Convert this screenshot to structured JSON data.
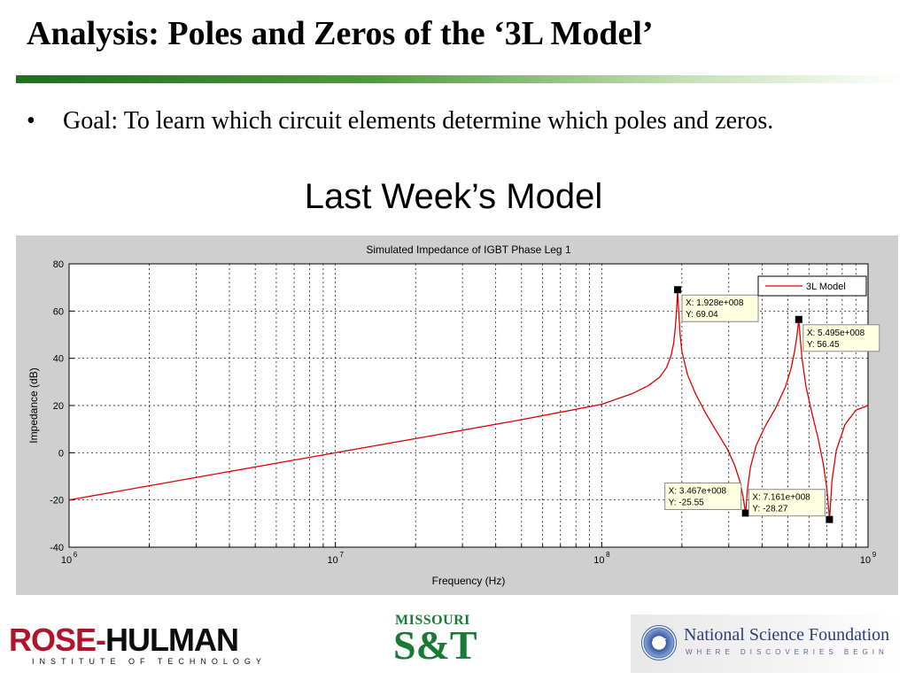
{
  "slide": {
    "title": "Analysis: Poles and Zeros of the ‘3L Model’",
    "bullet_marker": "•",
    "bullet_text": "Goal:  To learn which circuit elements determine which poles and zeros.",
    "subtitle": "Last Week’s Model"
  },
  "logos": {
    "rose_hulman_main_red": "ROSE-",
    "rose_hulman_main_dark": "HULMAN",
    "rose_hulman_sub": "INSTITUTE OF TECHNOLOGY",
    "mst_top": "MISSOURI",
    "mst_big": "S&T",
    "nsf_seal": "NSF",
    "nsf_name": "National Science Foundation",
    "nsf_tagline": "WHERE DISCOVERIES BEGIN"
  },
  "colors": {
    "line": "#e00000",
    "title_rule_start": "#1f6f1f",
    "figure_bg": "#cfcfcf",
    "rose_red": "#b0132b",
    "mst_green": "#1a7a35",
    "nsf_blue": "#2a3f7a"
  },
  "chart_data": {
    "type": "line",
    "title": "Simulated Impedance of IGBT Phase Leg 1",
    "xlabel": "Frequency (Hz)",
    "ylabel": "Impedance (dB)",
    "xscale": "log",
    "xlim": [
      1000000,
      1000000000
    ],
    "ylim": [
      -40,
      80
    ],
    "yticks": [
      80,
      60,
      40,
      20,
      0,
      -20,
      -40
    ],
    "xtick_base": "10",
    "xticks": [
      {
        "value": 1000000,
        "exp": "6"
      },
      {
        "value": 10000000,
        "exp": "7"
      },
      {
        "value": 100000000,
        "exp": "8"
      },
      {
        "value": 1000000000,
        "exp": "9"
      }
    ],
    "grid": true,
    "legend": {
      "position": "top-right",
      "entries": [
        "3L Model"
      ]
    },
    "series": [
      {
        "name": "3L Model",
        "x": [
          1000000,
          2000000,
          5000000,
          10000000,
          20000000,
          50000000,
          100000000,
          130000000,
          150000000,
          165000000,
          175000000,
          182000000,
          186000000,
          189000000,
          191000000,
          192800000,
          194500000,
          197000000,
          200000000,
          210000000,
          225000000,
          245000000,
          270000000,
          295000000,
          315000000,
          330000000,
          340000000,
          344000000,
          346700000,
          349000000,
          353000000,
          362000000,
          380000000,
          410000000,
          450000000,
          490000000,
          515000000,
          530000000,
          540000000,
          549500000,
          556000000,
          565000000,
          585000000,
          615000000,
          650000000,
          680000000,
          700000000,
          712000000,
          716100000,
          721000000,
          732000000,
          760000000,
          820000000,
          900000000,
          1000000000
        ],
        "y": [
          -20,
          -14,
          -6,
          0,
          6,
          14,
          20.5,
          25,
          28.5,
          32,
          36,
          41,
          46,
          53,
          60,
          69.04,
          60,
          50,
          43,
          33,
          25,
          17,
          9,
          2,
          -5,
          -12,
          -19,
          -23,
          -25.55,
          -22,
          -15,
          -6,
          3,
          11,
          19,
          28,
          36,
          43,
          49,
          56.45,
          49,
          40,
          28,
          17,
          6,
          -5,
          -15,
          -24,
          -28.27,
          -24,
          -12,
          1,
          12,
          18,
          20
        ]
      }
    ],
    "datatips": [
      {
        "x": 192800000,
        "y": 69.04,
        "x_label": "X: 1.928e+008",
        "y_label": "Y: 69.04",
        "box": "right"
      },
      {
        "x": 549500000,
        "y": 56.45,
        "x_label": "X: 5.495e+008",
        "y_label": "Y: 56.45",
        "box": "right"
      },
      {
        "x": 346700000,
        "y": -25.55,
        "x_label": "X: 3.467e+008",
        "y_label": "Y: -25.55",
        "box": "left"
      },
      {
        "x": 716100000,
        "y": -28.27,
        "x_label": "X: 7.161e+008",
        "y_label": "Y: -28.27",
        "box": "left"
      }
    ]
  }
}
